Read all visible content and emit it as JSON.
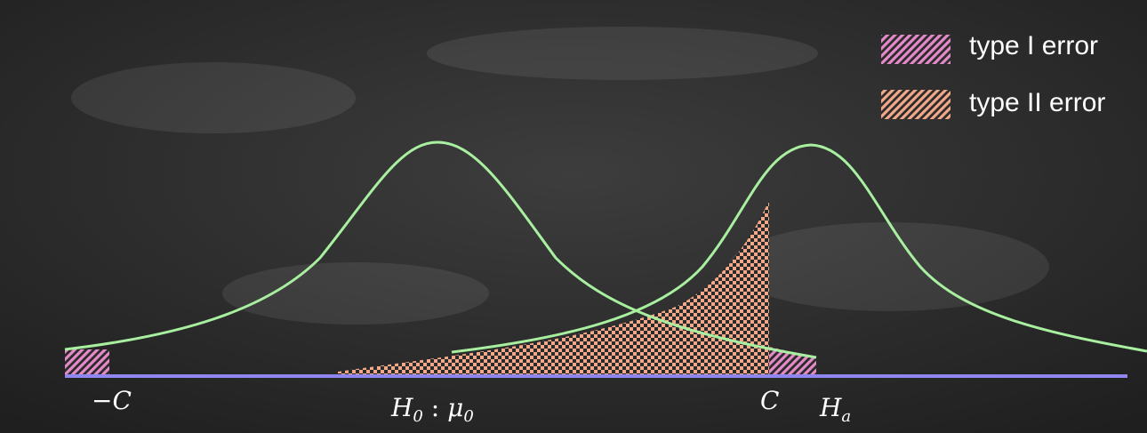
{
  "legend": {
    "type1_label": "type I error",
    "type2_label": "type II error"
  },
  "labels": {
    "neg_c": "−C",
    "h0_main": "H",
    "h0_sub": "0",
    "h0_sep": " : ",
    "mu_main": "μ",
    "mu_sub": "0",
    "c": "C",
    "ha_main": "H",
    "ha_sub": "a"
  },
  "colors": {
    "background": "#2f2f2f",
    "curve": "#a8f0a0",
    "axis": "#8f86f0",
    "type1_fill": "#e48ac8",
    "type2_fill": "#f2a98a",
    "pattern_dark": "#2a2a2a",
    "text": "#ffffff"
  }
}
